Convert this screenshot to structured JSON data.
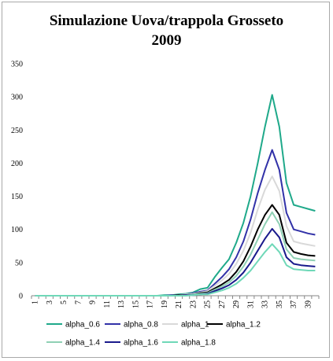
{
  "chart_data": {
    "type": "line",
    "title_line1": "Simulazione Uova/trappola Grosseto",
    "title_line2": "2009",
    "xlabel": "",
    "ylabel": "",
    "ylim": [
      0,
      350
    ],
    "y_ticks": [
      0,
      50,
      100,
      150,
      200,
      250,
      300,
      350
    ],
    "x": [
      1,
      2,
      3,
      4,
      5,
      6,
      7,
      8,
      9,
      10,
      11,
      12,
      13,
      14,
      15,
      16,
      17,
      18,
      19,
      20,
      21,
      22,
      23,
      24,
      25,
      26,
      27,
      28,
      29,
      30,
      31,
      32,
      33,
      34,
      35,
      36,
      37,
      38,
      39,
      40
    ],
    "x_tick_labels": [
      "1",
      "3",
      "5",
      "7",
      "9",
      "11",
      "13",
      "15",
      "17",
      "19",
      "21",
      "23",
      "25",
      "27",
      "29",
      "31",
      "33",
      "35",
      "37",
      "39"
    ],
    "grid": false,
    "legend_position": "bottom",
    "series": [
      {
        "name": "alpha_0.6",
        "color": "#1fa98a",
        "values": [
          0,
          0,
          0,
          0,
          0,
          0,
          0,
          0,
          0,
          0,
          0,
          0,
          0,
          0,
          0,
          0,
          0,
          0,
          1,
          1,
          2,
          3,
          5,
          10,
          12,
          28,
          42,
          55,
          80,
          110,
          150,
          200,
          255,
          303,
          255,
          170,
          137,
          134,
          131,
          128
        ]
      },
      {
        "name": "alpha_0.8",
        "color": "#3232a8",
        "values": [
          0,
          0,
          0,
          0,
          0,
          0,
          0,
          0,
          0,
          0,
          0,
          0,
          0,
          0,
          0,
          0,
          0,
          0,
          0,
          1,
          1,
          2,
          4,
          6,
          8,
          18,
          28,
          40,
          58,
          82,
          115,
          155,
          190,
          220,
          190,
          125,
          100,
          97,
          94,
          92
        ]
      },
      {
        "name": "alpha_1",
        "color": "#d9d9d9",
        "values": [
          0,
          0,
          0,
          0,
          0,
          0,
          0,
          0,
          0,
          0,
          0,
          0,
          0,
          0,
          0,
          0,
          0,
          0,
          0,
          0,
          1,
          2,
          3,
          5,
          7,
          15,
          23,
          33,
          48,
          68,
          95,
          130,
          160,
          180,
          158,
          105,
          82,
          79,
          77,
          75
        ]
      },
      {
        "name": "alpha_1.2",
        "color": "#000000",
        "values": [
          0,
          0,
          0,
          0,
          0,
          0,
          0,
          0,
          0,
          0,
          0,
          0,
          0,
          0,
          0,
          0,
          0,
          0,
          0,
          0,
          1,
          1,
          2,
          4,
          5,
          11,
          17,
          24,
          36,
          52,
          74,
          100,
          122,
          137,
          122,
          80,
          66,
          63,
          61,
          60
        ]
      },
      {
        "name": "alpha_1.4",
        "color": "#8fd0b4",
        "values": [
          0,
          0,
          0,
          0,
          0,
          0,
          0,
          0,
          0,
          0,
          0,
          0,
          0,
          0,
          0,
          0,
          0,
          0,
          0,
          0,
          0,
          1,
          2,
          3,
          4,
          9,
          14,
          20,
          30,
          44,
          62,
          85,
          108,
          126,
          108,
          70,
          57,
          55,
          54,
          53
        ]
      },
      {
        "name": "alpha_1.6",
        "color": "#1a1a8c",
        "values": [
          0,
          0,
          0,
          0,
          0,
          0,
          0,
          0,
          0,
          0,
          0,
          0,
          0,
          0,
          0,
          0,
          0,
          0,
          0,
          0,
          0,
          1,
          1,
          2,
          3,
          7,
          11,
          16,
          24,
          35,
          50,
          68,
          86,
          101,
          88,
          58,
          48,
          46,
          45,
          44
        ]
      },
      {
        "name": "alpha_1.8",
        "color": "#6fd8b8",
        "values": [
          0,
          0,
          0,
          0,
          0,
          0,
          0,
          0,
          0,
          0,
          0,
          0,
          0,
          0,
          0,
          0,
          0,
          0,
          0,
          0,
          0,
          0,
          1,
          2,
          2,
          5,
          8,
          12,
          18,
          27,
          38,
          52,
          66,
          78,
          66,
          46,
          40,
          39,
          38,
          38
        ]
      }
    ]
  }
}
